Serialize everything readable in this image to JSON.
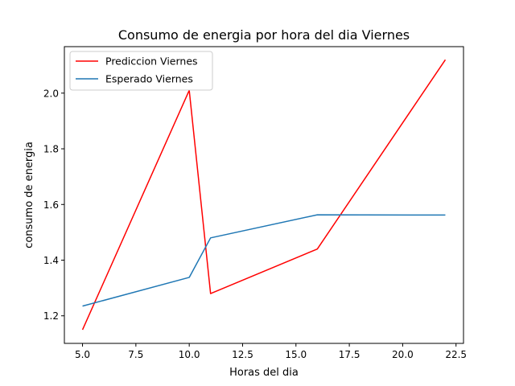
{
  "chart_data": {
    "type": "line",
    "title": "Consumo de energia por hora del dia Viernes",
    "xlabel": "Horas del dia",
    "ylabel": "consumo de energia",
    "xlim": [
      4.15,
      22.85
    ],
    "ylim": [
      1.101,
      2.167
    ],
    "xticks": [
      5.0,
      7.5,
      10.0,
      12.5,
      15.0,
      17.5,
      20.0,
      22.5
    ],
    "xtick_labels": [
      "5.0",
      "7.5",
      "10.0",
      "12.5",
      "15.0",
      "17.5",
      "20.0",
      "22.5"
    ],
    "yticks": [
      1.2,
      1.4,
      1.6,
      1.8,
      2.0
    ],
    "ytick_labels": [
      "1.2",
      "1.4",
      "1.6",
      "1.8",
      "2.0"
    ],
    "grid": false,
    "legend_position": "top-left",
    "series": [
      {
        "name": "Prediccion Viernes",
        "color": "#ff0000",
        "x": [
          5,
          10,
          11,
          16,
          22
        ],
        "y": [
          1.15,
          2.01,
          1.28,
          1.44,
          2.12
        ]
      },
      {
        "name": "Esperado Viernes",
        "color": "#1f77b4",
        "x": [
          5,
          10,
          11,
          16,
          22
        ],
        "y": [
          1.235,
          1.338,
          1.48,
          1.563,
          1.562
        ]
      }
    ]
  }
}
